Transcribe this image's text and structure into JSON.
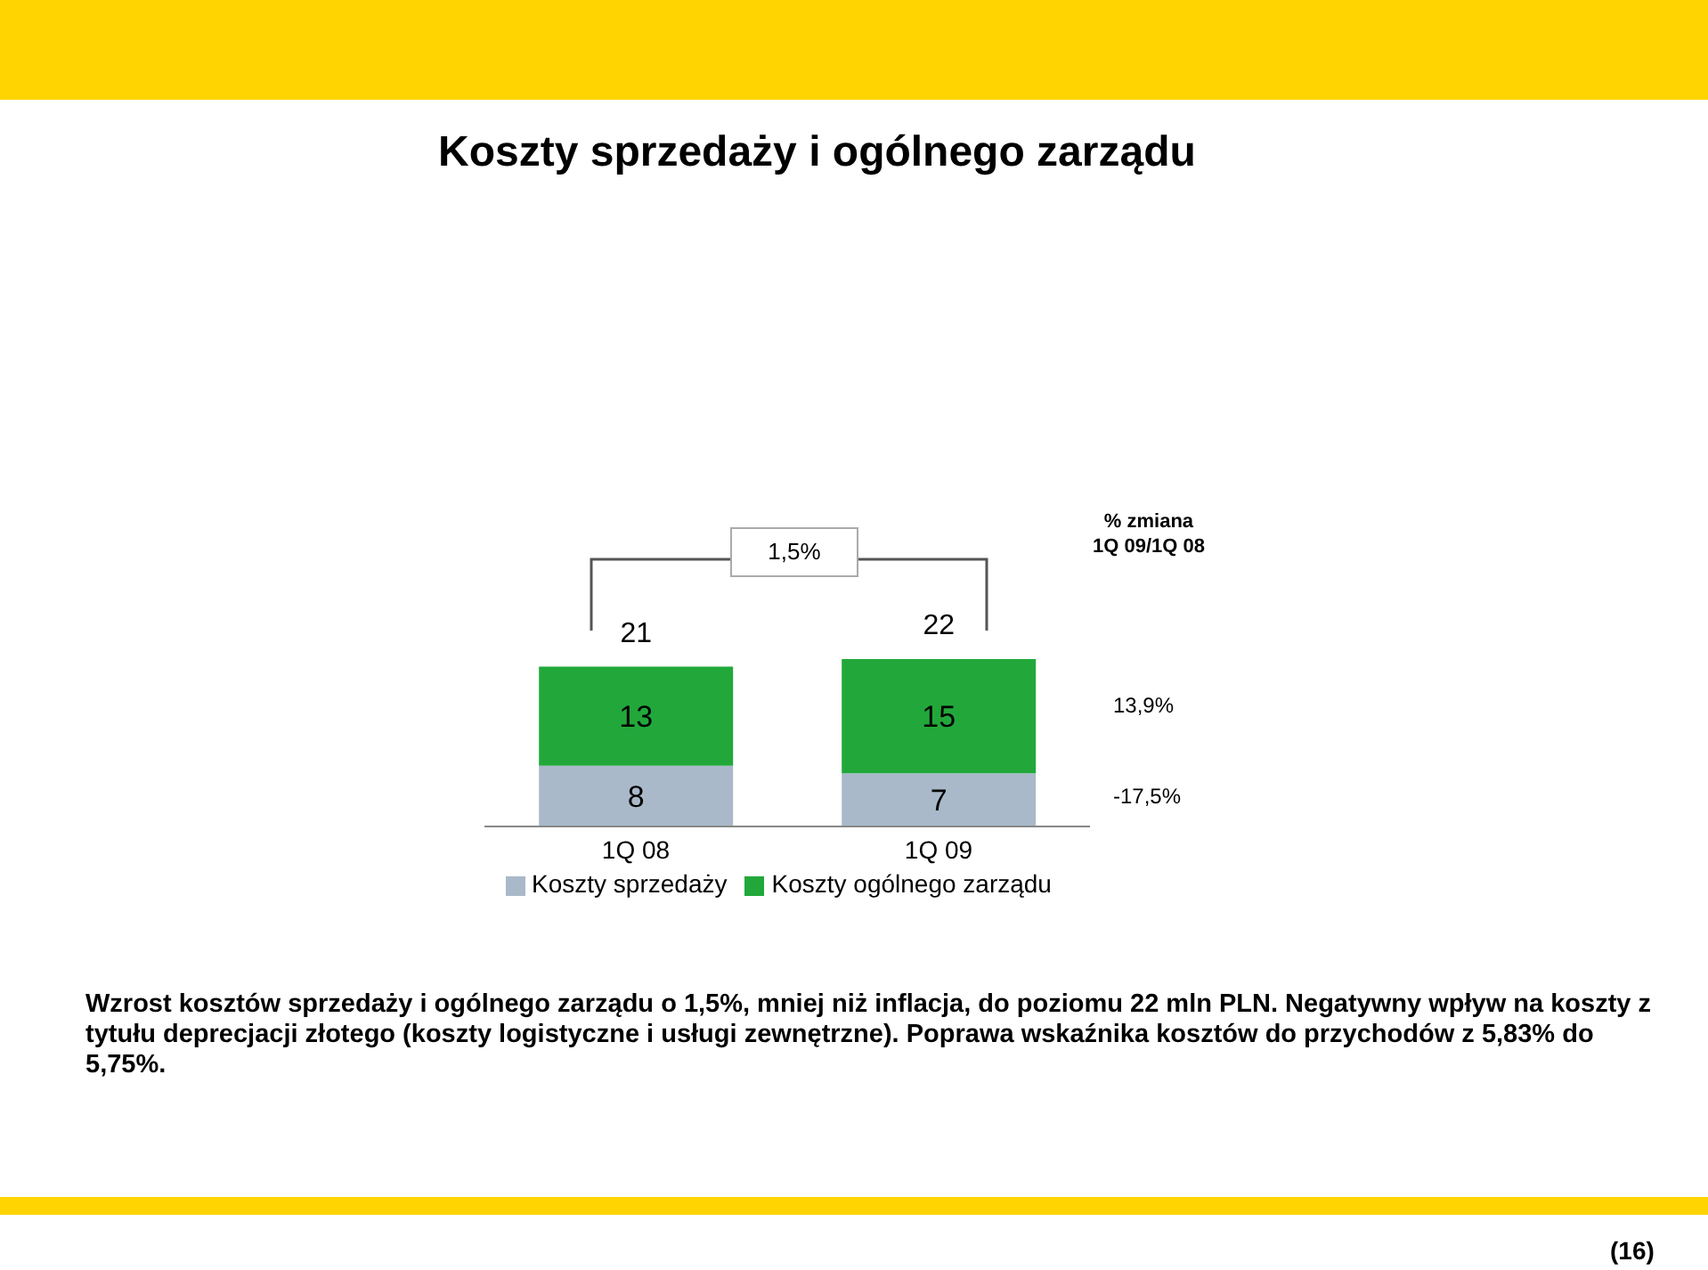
{
  "chart_data": {
    "type": "bar",
    "title": "Koszty sprzedaży i ogólnego zarządu",
    "categories": [
      "1Q 08",
      "1Q 09"
    ],
    "stacked": true,
    "series": [
      {
        "name": "Koszty sprzedaży",
        "color": "#a9b9c9",
        "values": [
          8,
          7
        ]
      },
      {
        "name": "Koszty ogólnego zarządu",
        "color": "#22a83a",
        "values": [
          13,
          15
        ]
      }
    ],
    "data_labels": true,
    "totals": [
      "21",
      "22"
    ],
    "legend": "bottom",
    "annotations": [
      "1,5%",
      "% zmiana",
      "1Q 09/1Q 08",
      "13,9%",
      "-17,5%",
      "Wzrost kosztów sprzedaży i ogólnego zarządu o 1,5%, mniej niż inflacja, do poziomu 22 mln PLN. Negatywny wpływ na koszty z tytułu deprecjacji złotego (koszty logistyczne i usługi zewnętrzne). Poprawa wskaźnika kosztów do przychodów z 5,83% do 5,75%.",
      "(16)"
    ]
  }
}
